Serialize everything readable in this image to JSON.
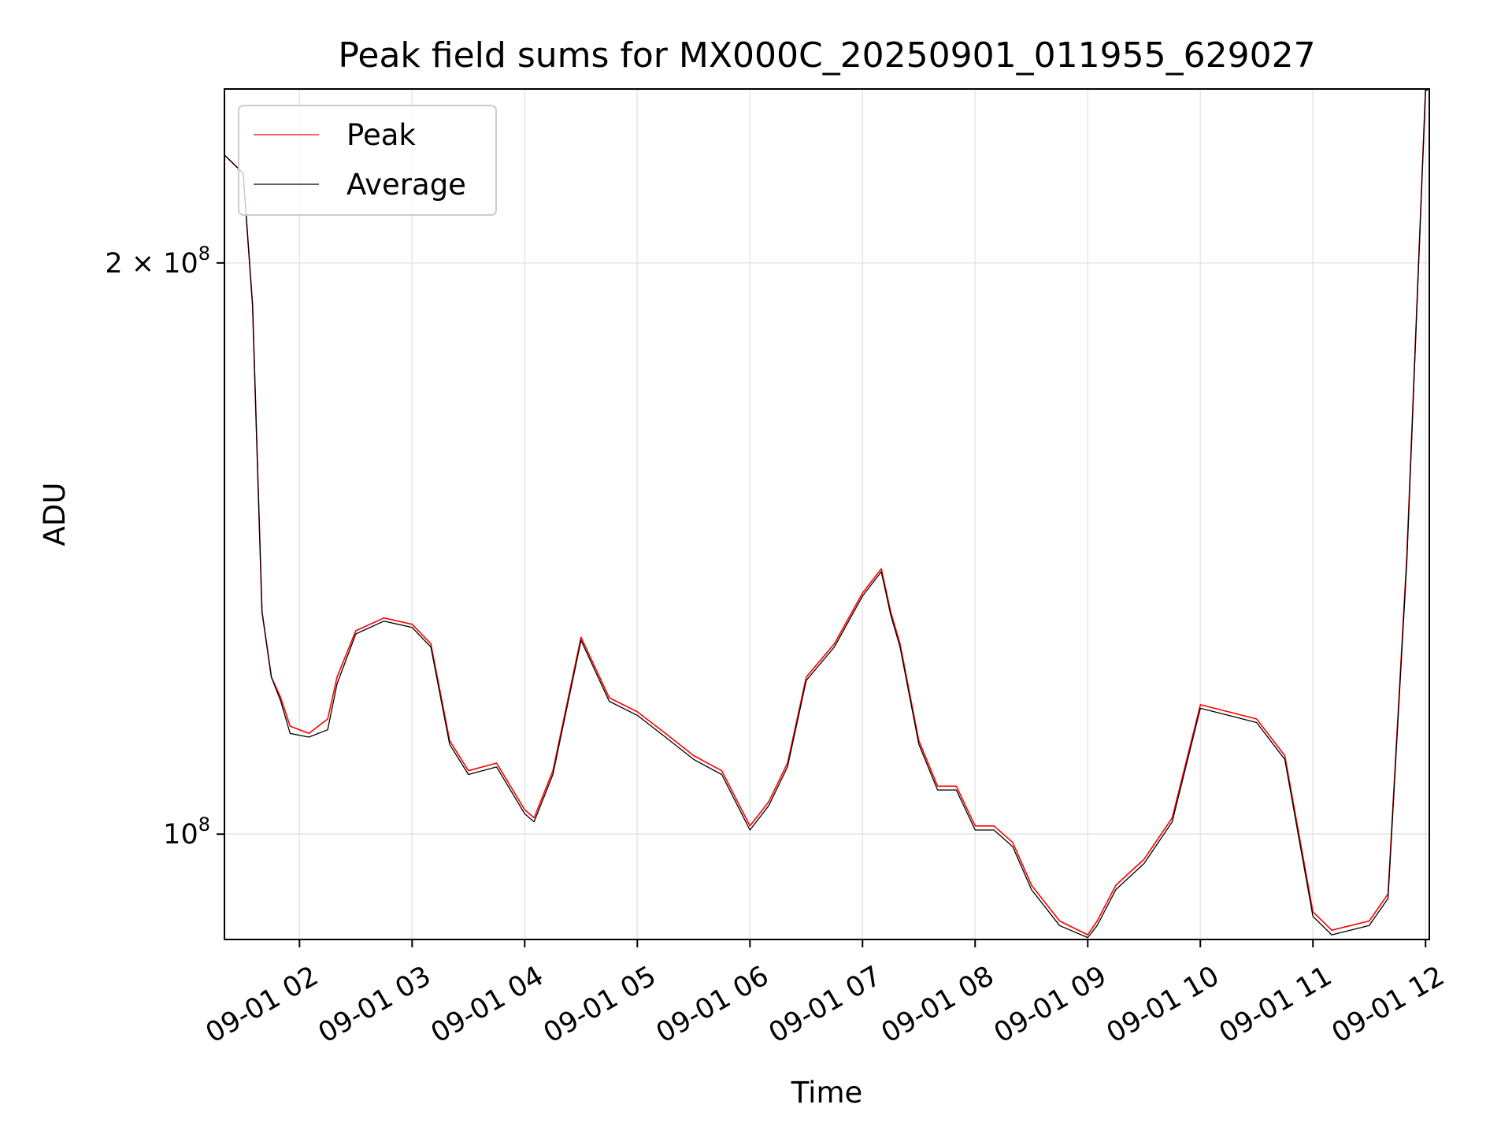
{
  "chart_data": {
    "type": "line",
    "title": "Peak field sums for MX000C_20250901_011955_629027",
    "xlabel": "Time",
    "ylabel": "ADU",
    "y_scale": "log",
    "ylim": [
      88000000,
      247000000
    ],
    "xlim": [
      "09-01 01:20",
      "09-01 12:02"
    ],
    "x_ticks": [
      "09-01 02",
      "09-01 03",
      "09-01 04",
      "09-01 05",
      "09-01 06",
      "09-01 07",
      "09-01 08",
      "09-01 09",
      "09-01 10",
      "09-01 11",
      "09-01 12"
    ],
    "y_ticks": [
      {
        "value": 100000000,
        "mantissa": "",
        "base": "10",
        "exp": "8"
      },
      {
        "value": 200000000,
        "mantissa": "2 × ",
        "base": "10",
        "exp": "8"
      }
    ],
    "grid": true,
    "legend_position": "top-left",
    "colors": {
      "peak": "#ff0000",
      "average": "#000000"
    },
    "series": [
      {
        "name": "Peak",
        "color": "#ff0000",
        "x": [
          "09-01 01:20",
          "09-01 01:30",
          "09-01 01:35",
          "09-01 01:40",
          "09-01 01:45",
          "09-01 01:50",
          "09-01 01:55",
          "09-01 02:05",
          "09-01 02:15",
          "09-01 02:20",
          "09-01 02:30",
          "09-01 02:45",
          "09-01 03:00",
          "09-01 03:10",
          "09-01 03:20",
          "09-01 03:30",
          "09-01 03:45",
          "09-01 04:00",
          "09-01 04:05",
          "09-01 04:15",
          "09-01 04:30",
          "09-01 04:45",
          "09-01 05:00",
          "09-01 05:15",
          "09-01 05:30",
          "09-01 05:45",
          "09-01 06:00",
          "09-01 06:10",
          "09-01 06:20",
          "09-01 06:30",
          "09-01 06:45",
          "09-01 07:00",
          "09-01 07:10",
          "09-01 07:15",
          "09-01 07:20",
          "09-01 07:30",
          "09-01 07:40",
          "09-01 07:50",
          "09-01 08:00",
          "09-01 08:10",
          "09-01 08:20",
          "09-01 08:30",
          "09-01 08:45",
          "09-01 09:00",
          "09-01 09:05",
          "09-01 09:15",
          "09-01 09:30",
          "09-01 09:45",
          "09-01 10:00",
          "09-01 10:15",
          "09-01 10:30",
          "09-01 10:45",
          "09-01 11:00",
          "09-01 11:10",
          "09-01 11:30",
          "09-01 11:40",
          "09-01 11:50",
          "09-01 12:00",
          "09-01 12:02"
        ],
        "values": [
          228000000,
          223000000,
          190000000,
          131000000,
          121000000,
          118000000,
          114000000,
          113000000,
          115000000,
          121000000,
          128000000,
          130000000,
          129000000,
          126000000,
          112000000,
          108000000,
          109000000,
          103000000,
          102000000,
          108000000,
          127000000,
          118000000,
          116000000,
          113000000,
          110000000,
          108000000,
          101000000,
          104000000,
          109000000,
          121000000,
          126000000,
          134000000,
          138000000,
          131000000,
          126000000,
          112000000,
          106000000,
          106000000,
          101000000,
          101000000,
          99000000,
          94000000,
          90000000,
          88500000,
          90000000,
          94000000,
          97000000,
          102000000,
          117000000,
          116000000,
          115000000,
          110000000,
          91000000,
          89000000,
          90000000,
          93000000,
          140000000,
          247000000,
          247000000
        ]
      },
      {
        "name": "Average",
        "color": "#000000",
        "x": [
          "09-01 01:20",
          "09-01 01:30",
          "09-01 01:35",
          "09-01 01:40",
          "09-01 01:45",
          "09-01 01:50",
          "09-01 01:55",
          "09-01 02:05",
          "09-01 02:15",
          "09-01 02:20",
          "09-01 02:30",
          "09-01 02:45",
          "09-01 03:00",
          "09-01 03:10",
          "09-01 03:20",
          "09-01 03:30",
          "09-01 03:45",
          "09-01 04:00",
          "09-01 04:05",
          "09-01 04:15",
          "09-01 04:30",
          "09-01 04:45",
          "09-01 05:00",
          "09-01 05:15",
          "09-01 05:30",
          "09-01 05:45",
          "09-01 06:00",
          "09-01 06:10",
          "09-01 06:20",
          "09-01 06:30",
          "09-01 06:45",
          "09-01 07:00",
          "09-01 07:10",
          "09-01 07:15",
          "09-01 07:20",
          "09-01 07:30",
          "09-01 07:40",
          "09-01 07:50",
          "09-01 08:00",
          "09-01 08:10",
          "09-01 08:20",
          "09-01 08:30",
          "09-01 08:45",
          "09-01 09:00",
          "09-01 09:05",
          "09-01 09:15",
          "09-01 09:30",
          "09-01 09:45",
          "09-01 10:00",
          "09-01 10:15",
          "09-01 10:30",
          "09-01 10:45",
          "09-01 11:00",
          "09-01 11:10",
          "09-01 11:30",
          "09-01 11:40",
          "09-01 11:50",
          "09-01 12:00",
          "09-01 12:02"
        ],
        "values": [
          228000000,
          223000000,
          190000000,
          131000000,
          121000000,
          117500000,
          113000000,
          112500000,
          113500000,
          120000000,
          127500000,
          129500000,
          128500000,
          125500000,
          111500000,
          107500000,
          108500000,
          102500000,
          101500000,
          107500000,
          126500000,
          117500000,
          115500000,
          112500000,
          109500000,
          107500000,
          100500000,
          103500000,
          108500000,
          120500000,
          125500000,
          133500000,
          137500000,
          130500000,
          125500000,
          111500000,
          105500000,
          105500000,
          100500000,
          100500000,
          98500000,
          93500000,
          89500000,
          88200000,
          89500000,
          93500000,
          96500000,
          101500000,
          116500000,
          115500000,
          114500000,
          109500000,
          90500000,
          88500000,
          89500000,
          92500000,
          139000000,
          246500000,
          247000000
        ]
      }
    ]
  }
}
